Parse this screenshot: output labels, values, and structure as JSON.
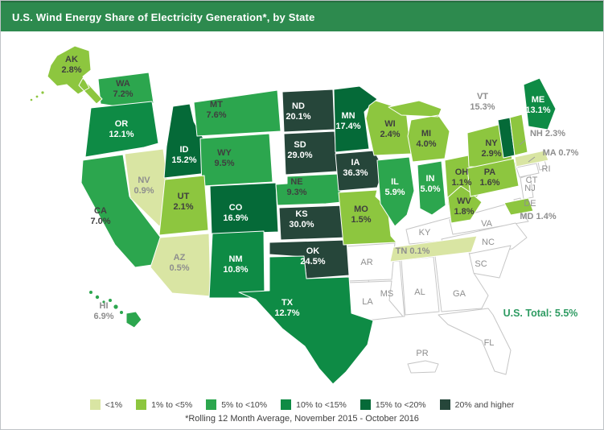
{
  "header": {
    "title": "U.S. Wind Energy Share of Electricity Generation*, by State",
    "bg_color": "#2d8a4e"
  },
  "us_total": {
    "label": "U.S. Total: 5.5%",
    "color": "#2e9b62"
  },
  "footer": {
    "note": "*Rolling 12 Month Average, November 2015 - October 2016"
  },
  "legend": {
    "items": [
      {
        "label": "<1%",
        "color": "#d9e5a3"
      },
      {
        "label": "1% to <5%",
        "color": "#8dc63f"
      },
      {
        "label": "5% to <10%",
        "color": "#2ca64e"
      },
      {
        "label": "10% to <15%",
        "color": "#0e8b45"
      },
      {
        "label": "15% to <20%",
        "color": "#056a38"
      },
      {
        "label": "20% and higher",
        "color": "#26463a"
      }
    ]
  },
  "map": {
    "label_colors": {
      "dark": "#3f3f3f",
      "gray": "#8e8e8e",
      "white": "#ffffff"
    },
    "no_data_fill": "#ffffff",
    "no_data_stroke": "#c6c6c6",
    "state_stroke": "#ffffff",
    "states": [
      {
        "abbr": "AK",
        "value": "2.8%",
        "bin": "1% to <5%"
      },
      {
        "abbr": "WA",
        "value": "7.2%",
        "bin": "5% to <10%"
      },
      {
        "abbr": "OR",
        "value": "12.1%",
        "bin": "10% to <15%"
      },
      {
        "abbr": "CA",
        "value": "7.0%",
        "bin": "5% to <10%"
      },
      {
        "abbr": "NV",
        "value": "0.9%",
        "bin": "<1%"
      },
      {
        "abbr": "ID",
        "value": "15.2%",
        "bin": "15% to <20%"
      },
      {
        "abbr": "MT",
        "value": "7.6%",
        "bin": "5% to <10%"
      },
      {
        "abbr": "WY",
        "value": "9.5%",
        "bin": "5% to <10%"
      },
      {
        "abbr": "UT",
        "value": "2.1%",
        "bin": "1% to <5%"
      },
      {
        "abbr": "AZ",
        "value": "0.5%",
        "bin": "<1%"
      },
      {
        "abbr": "NM",
        "value": "10.8%",
        "bin": "10% to <15%"
      },
      {
        "abbr": "CO",
        "value": "16.9%",
        "bin": "15% to <20%"
      },
      {
        "abbr": "ND",
        "value": "20.1%",
        "bin": "20% and higher"
      },
      {
        "abbr": "SD",
        "value": "29.0%",
        "bin": "20% and higher"
      },
      {
        "abbr": "NE",
        "value": "9.3%",
        "bin": "5% to <10%"
      },
      {
        "abbr": "KS",
        "value": "30.0%",
        "bin": "20% and higher"
      },
      {
        "abbr": "OK",
        "value": "24.5%",
        "bin": "20% and higher"
      },
      {
        "abbr": "TX",
        "value": "12.7%",
        "bin": "10% to <15%"
      },
      {
        "abbr": "MN",
        "value": "17.4%",
        "bin": "15% to <20%"
      },
      {
        "abbr": "IA",
        "value": "36.3%",
        "bin": "20% and higher"
      },
      {
        "abbr": "MO",
        "value": "1.5%",
        "bin": "1% to <5%"
      },
      {
        "abbr": "WI",
        "value": "2.4%",
        "bin": "1% to <5%"
      },
      {
        "abbr": "IL",
        "value": "5.9%",
        "bin": "5% to <10%"
      },
      {
        "abbr": "MI",
        "value": "4.0%",
        "bin": "1% to <5%"
      },
      {
        "abbr": "IN",
        "value": "5.0%",
        "bin": "5% to <10%"
      },
      {
        "abbr": "OH",
        "value": "1.1%",
        "bin": "1% to <5%"
      },
      {
        "abbr": "WV",
        "value": "1.8%",
        "bin": "1% to <5%"
      },
      {
        "abbr": "TN",
        "value": "0.1%",
        "bin": "<1%"
      },
      {
        "abbr": "NY",
        "value": "2.9%",
        "bin": "1% to <5%"
      },
      {
        "abbr": "PA",
        "value": "1.6%",
        "bin": "1% to <5%"
      },
      {
        "abbr": "VT",
        "value": "15.3%",
        "bin": "15% to <20%"
      },
      {
        "abbr": "NH",
        "value": "2.3%",
        "bin": "1% to <5%"
      },
      {
        "abbr": "ME",
        "value": "13.1%",
        "bin": "10% to <15%"
      },
      {
        "abbr": "MA",
        "value": "0.7%",
        "bin": "<1%"
      },
      {
        "abbr": "MD",
        "value": "1.4%",
        "bin": "1% to <5%"
      },
      {
        "abbr": "HI",
        "value": "6.9%",
        "bin": "5% to <10%"
      },
      {
        "abbr": "KY",
        "value": "",
        "bin": ""
      },
      {
        "abbr": "VA",
        "value": "",
        "bin": ""
      },
      {
        "abbr": "NC",
        "value": "",
        "bin": ""
      },
      {
        "abbr": "SC",
        "value": "",
        "bin": ""
      },
      {
        "abbr": "GA",
        "value": "",
        "bin": ""
      },
      {
        "abbr": "AL",
        "value": "",
        "bin": ""
      },
      {
        "abbr": "MS",
        "value": "",
        "bin": ""
      },
      {
        "abbr": "AR",
        "value": "",
        "bin": ""
      },
      {
        "abbr": "LA",
        "value": "",
        "bin": ""
      },
      {
        "abbr": "FL",
        "value": "",
        "bin": ""
      },
      {
        "abbr": "NJ",
        "value": "",
        "bin": ""
      },
      {
        "abbr": "DE",
        "value": "",
        "bin": ""
      },
      {
        "abbr": "CT",
        "value": "",
        "bin": ""
      },
      {
        "abbr": "RI",
        "value": "",
        "bin": ""
      },
      {
        "abbr": "PR",
        "value": "",
        "bin": ""
      }
    ]
  },
  "chart_data": {
    "type": "heatmap",
    "subtype": "us-state-choropleth",
    "title": "U.S. Wind Energy Share of Electricity Generation*, by State",
    "note": "*Rolling 12 Month Average, November 2015 - October 2016",
    "us_total_percent": 5.5,
    "legend_bins": [
      "<1%",
      "1% to <5%",
      "5% to <10%",
      "10% to <15%",
      "15% to <20%",
      "20% and higher"
    ],
    "legend_position": "bottom",
    "categories": [
      "AK",
      "WA",
      "OR",
      "CA",
      "NV",
      "ID",
      "MT",
      "WY",
      "UT",
      "AZ",
      "NM",
      "CO",
      "ND",
      "SD",
      "NE",
      "KS",
      "OK",
      "TX",
      "MN",
      "IA",
      "MO",
      "WI",
      "IL",
      "MI",
      "IN",
      "OH",
      "WV",
      "TN",
      "NY",
      "PA",
      "VT",
      "NH",
      "ME",
      "MA",
      "MD",
      "HI"
    ],
    "values": [
      2.8,
      7.2,
      12.1,
      7.0,
      0.9,
      15.2,
      7.6,
      9.5,
      2.1,
      0.5,
      10.8,
      16.9,
      20.1,
      29.0,
      9.3,
      30.0,
      24.5,
      12.7,
      17.4,
      36.3,
      1.5,
      2.4,
      5.9,
      4.0,
      5.0,
      1.1,
      1.8,
      0.1,
      2.9,
      1.6,
      15.3,
      2.3,
      13.1,
      0.7,
      1.4,
      6.9
    ],
    "no_data_states": [
      "KY",
      "VA",
      "NC",
      "SC",
      "GA",
      "AL",
      "MS",
      "AR",
      "LA",
      "FL",
      "NJ",
      "DE",
      "CT",
      "RI",
      "PR"
    ]
  }
}
